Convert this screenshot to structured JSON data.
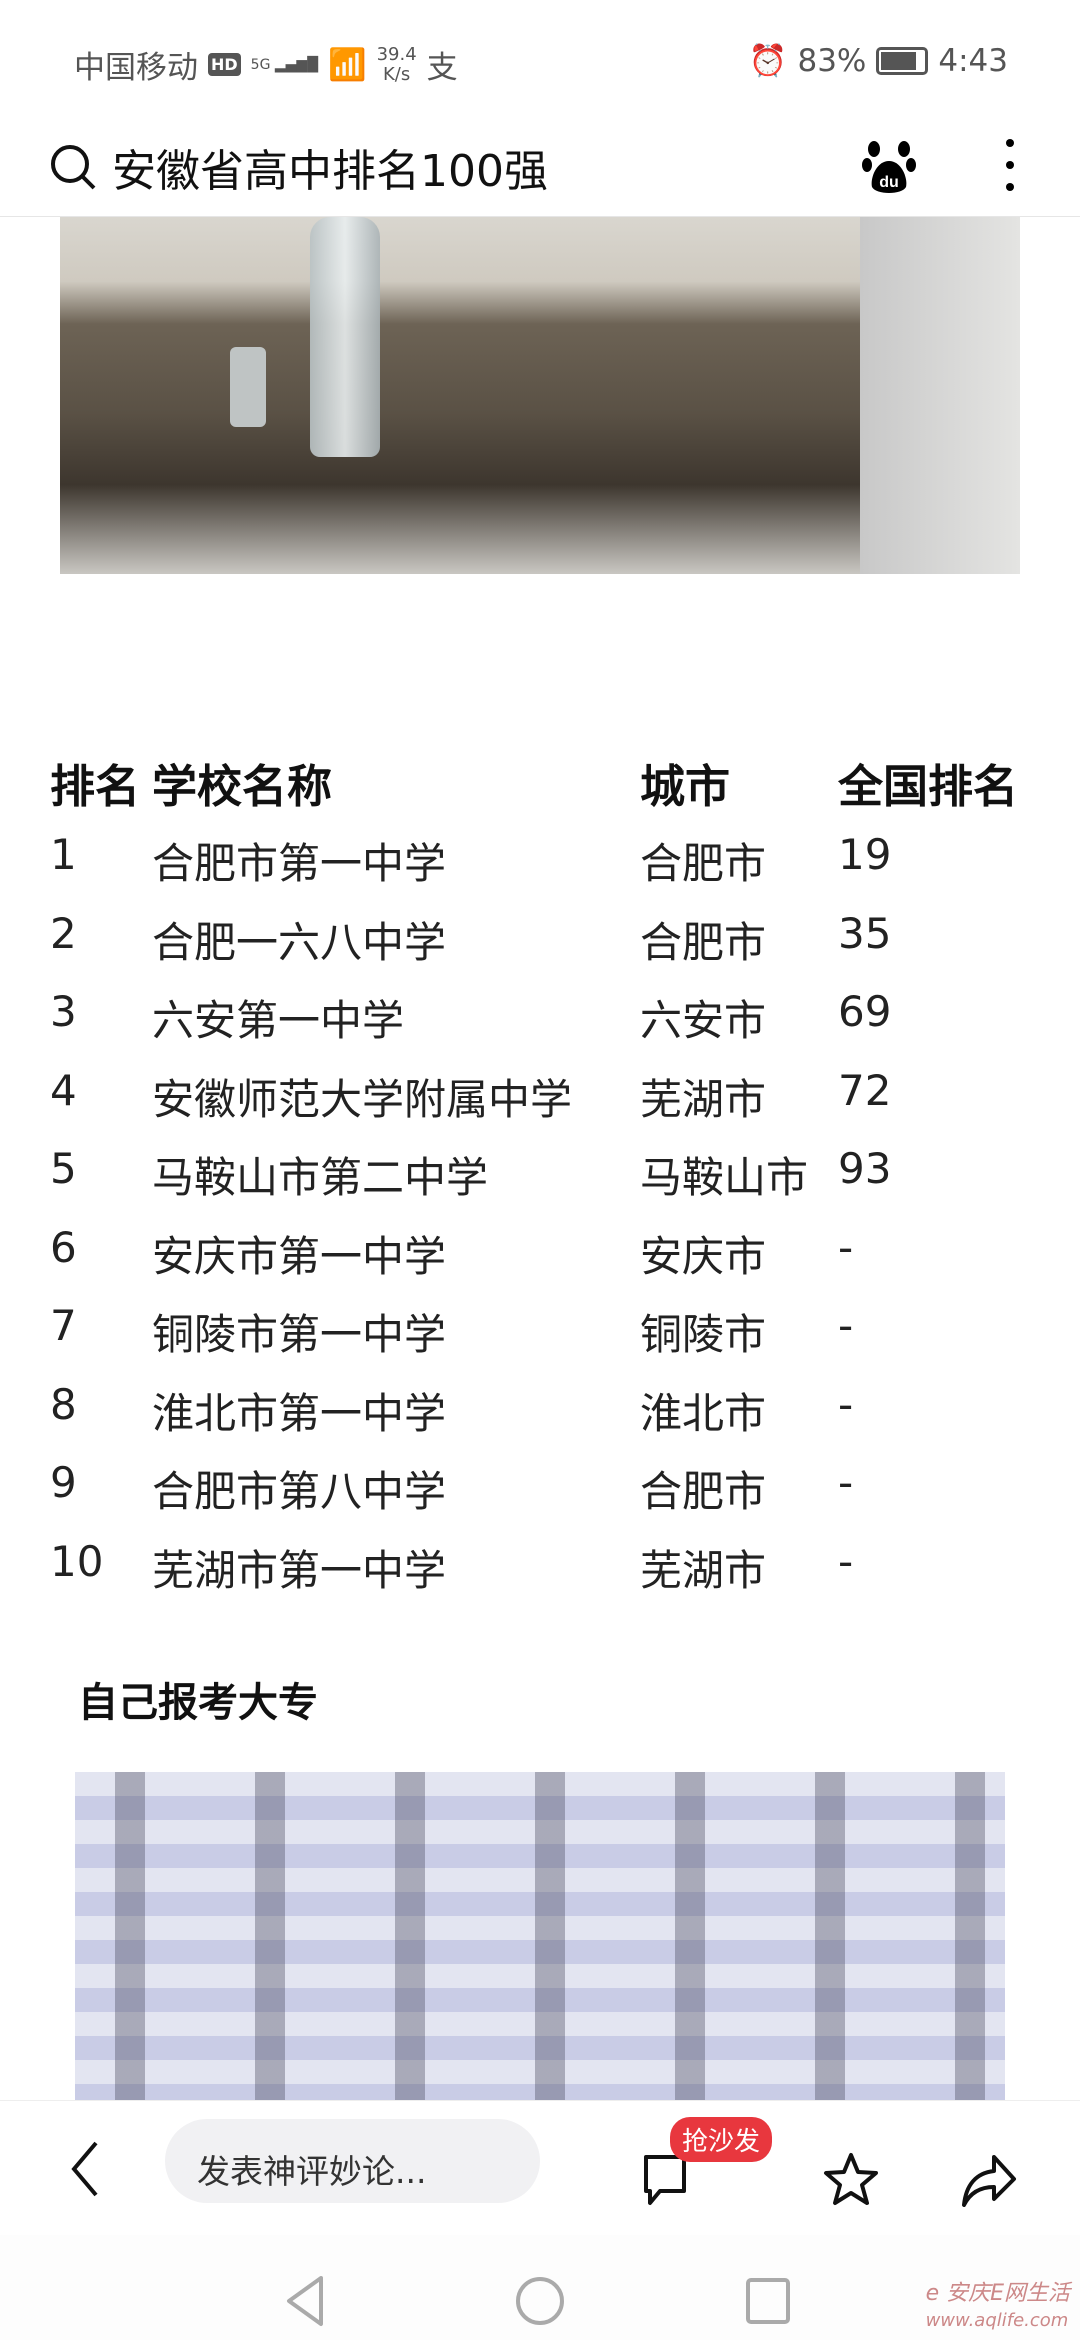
{
  "status": {
    "carrier": "中国移动",
    "hd": "HD",
    "net": "5G",
    "speed_value": "39.4",
    "speed_unit": "K/s",
    "app_icon": "支",
    "battery": "83%",
    "time": "4:43"
  },
  "search": {
    "query": "安徽省高中排名100强",
    "icons": [
      "search-icon",
      "baidu-paw-icon",
      "more-vert-icon"
    ]
  },
  "table": {
    "headers": [
      "排名",
      "学校名称",
      "城市",
      "全国排名"
    ],
    "rows": [
      [
        "1",
        "合肥市第一中学",
        "合肥市",
        "19"
      ],
      [
        "2",
        "合肥一六八中学",
        "合肥市",
        "35"
      ],
      [
        "3",
        "六安第一中学",
        "六安市",
        "69"
      ],
      [
        "4",
        "安徽师范大学附属中学",
        "芜湖市",
        "72"
      ],
      [
        "5",
        "马鞍山市第二中学",
        "马鞍山市",
        "93"
      ],
      [
        "6",
        "安庆市第一中学",
        "安庆市",
        "-"
      ],
      [
        "7",
        "铜陵市第一中学",
        "铜陵市",
        "-"
      ],
      [
        "8",
        "淮北市第一中学",
        "淮北市",
        "-"
      ],
      [
        "9",
        "合肥市第八中学",
        "合肥市",
        "-"
      ],
      [
        "10",
        "芜湖市第一中学",
        "芜湖市",
        "-"
      ]
    ]
  },
  "section_title": "自己报考大专",
  "bottom_bar": {
    "comment_placeholder": "发表神评妙论...",
    "badge": "抢沙发",
    "accent": "#e8373e"
  },
  "watermark": "安庆E网生活 www.aqlife.com"
}
